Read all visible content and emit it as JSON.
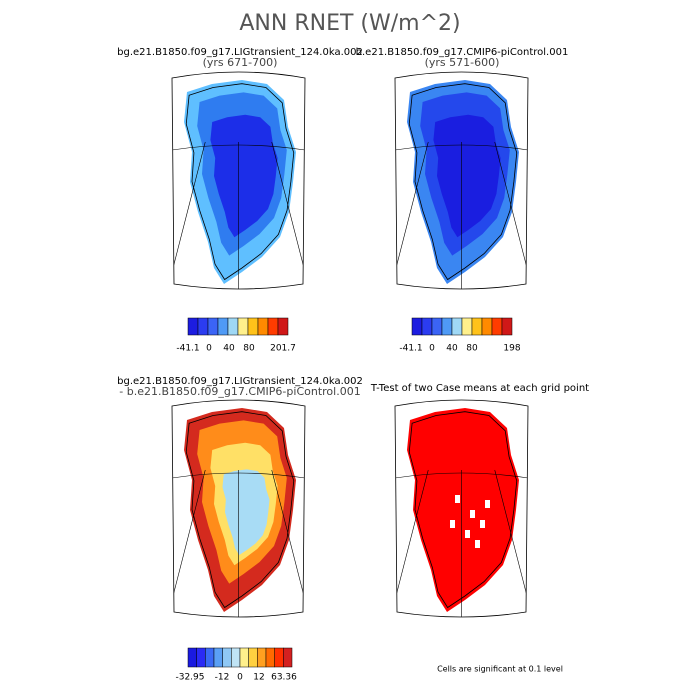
{
  "title": "ANN RNET (W/m^2)",
  "panels": [
    {
      "title": "bg.e21.B1850.f09_g17.LIGtransient_124.0ka.002",
      "subtitle": "(yrs 671-700)",
      "colors": [
        "#5fbfff",
        "#2f7cf0",
        "#1c2ee8"
      ]
    },
    {
      "title": "b.e21.B1850.f09_g17.CMIP6-piControl.001",
      "subtitle": "(yrs 571-600)",
      "colors": [
        "#3a86f2",
        "#2448ec",
        "#1a1ee0"
      ]
    },
    {
      "title": "bg.e21.B1850.f09_g17.LIGtransient_124.0ka.002",
      "subtitle": "- b.e21.B1850.f09_g17.CMIP6-piControl.001",
      "colors": [
        "#d42a1e",
        "#ff8c1a",
        "#ffe066",
        "#a8dcf5"
      ]
    },
    {
      "title": "T-Test of two Case means at each grid point",
      "colors": [
        "#ff0000"
      ]
    }
  ],
  "colorbars": [
    {
      "colors": [
        "#1c1ce0",
        "#2b3cf0",
        "#3b64f5",
        "#4f9af5",
        "#9fd8f5",
        "#fff08c",
        "#ffc21a",
        "#ff8a00",
        "#ff3c00",
        "#d01818"
      ],
      "labels": [
        "-41.1",
        "0",
        "40",
        "80",
        "201.7"
      ]
    },
    {
      "colors": [
        "#1c1ce0",
        "#2b3cf0",
        "#3b64f5",
        "#4f9af5",
        "#9fd8f5",
        "#fff08c",
        "#ffc21a",
        "#ff8a00",
        "#ff3c00",
        "#d01818"
      ],
      "labels": [
        "-41.1",
        "0",
        "40",
        "80",
        "198"
      ]
    },
    {
      "colors": [
        "#1a1ae0",
        "#2a2af5",
        "#3a6af5",
        "#5aa0f5",
        "#8fc8f5",
        "#c0e4f5",
        "#fff08c",
        "#ffd040",
        "#ffa020",
        "#ff6a00",
        "#ff3000",
        "#d42020"
      ],
      "labels": [
        "-32.95",
        "-12",
        "0",
        "12",
        "63.36"
      ]
    }
  ],
  "note": "Cells are significant at 0.1 level"
}
